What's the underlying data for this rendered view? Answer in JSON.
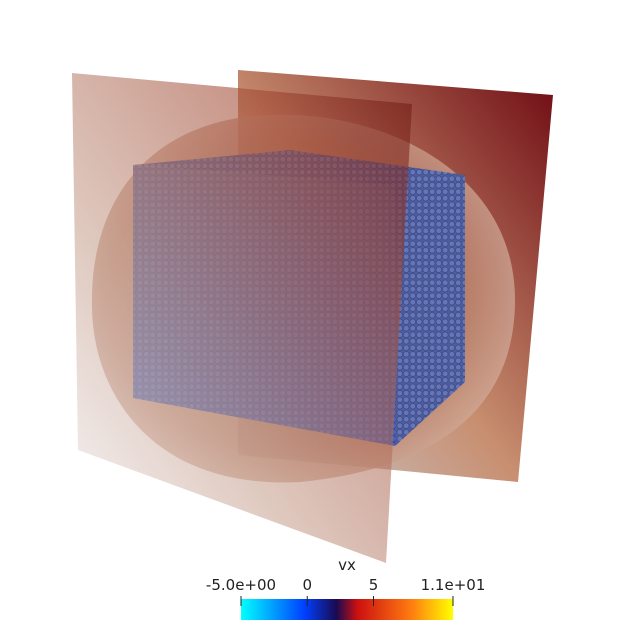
{
  "colorbar": {
    "title": "vx",
    "range": [
      -5,
      11
    ],
    "ticks": [
      {
        "value": -5,
        "label": "-5.0e+00"
      },
      {
        "value": 0,
        "label": "0"
      },
      {
        "value": 5,
        "label": "5"
      },
      {
        "value": 11,
        "label": "1.1e+01"
      }
    ]
  }
}
